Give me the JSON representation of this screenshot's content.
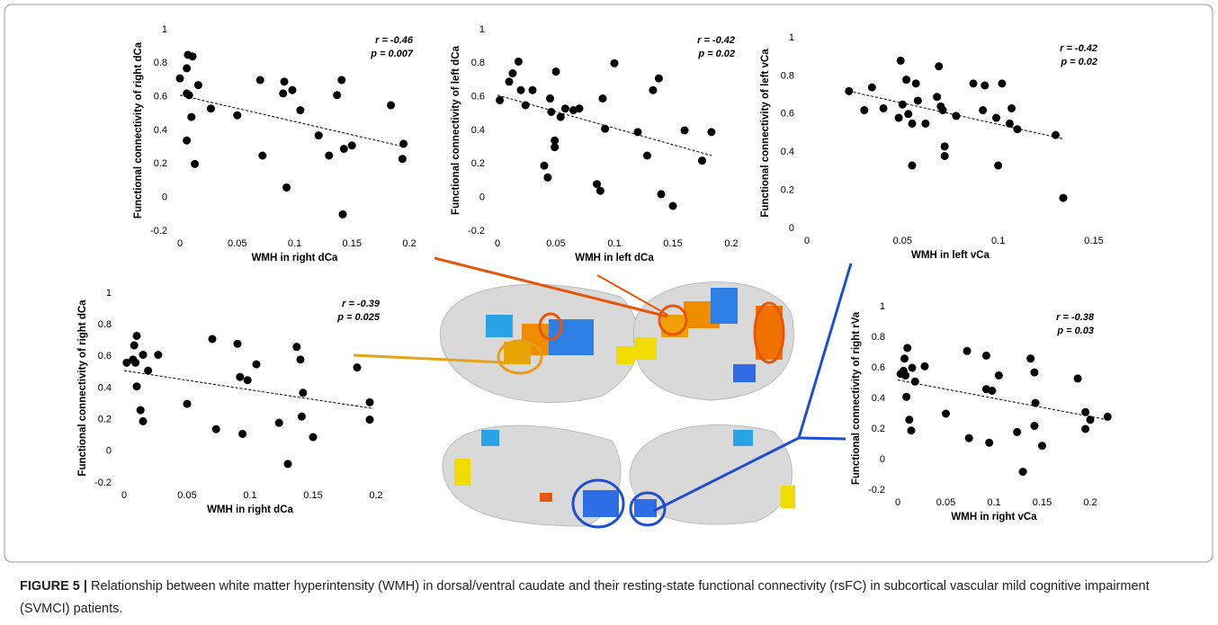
{
  "chart_data": [
    {
      "type": "scatter",
      "ylabel": "Functional connectivity of right dCa",
      "xlabel": "WMH in right dCa",
      "r_label": "r = -0.46",
      "p_label": "p = 0.007",
      "xlim": [
        0,
        0.2
      ],
      "ylim": [
        -0.2,
        1
      ],
      "xticks": [
        0,
        0.05,
        0.1,
        0.15,
        0.2
      ],
      "yticks": [
        -0.2,
        0,
        0.2,
        0.4,
        0.6,
        0.8,
        1
      ],
      "color": "#000000",
      "x": [
        0.0,
        0.006,
        0.007,
        0.011,
        0.006,
        0.008,
        0.006,
        0.01,
        0.013,
        0.016,
        0.027,
        0.05,
        0.07,
        0.072,
        0.09,
        0.091,
        0.098,
        0.093,
        0.105,
        0.121,
        0.13,
        0.137,
        0.141,
        0.143,
        0.15,
        0.142,
        0.184,
        0.195,
        0.194
      ],
      "y": [
        0.71,
        0.77,
        0.85,
        0.84,
        0.62,
        0.61,
        0.34,
        0.48,
        0.2,
        0.67,
        0.53,
        0.49,
        0.7,
        0.25,
        0.62,
        0.69,
        0.64,
        0.06,
        0.52,
        0.37,
        0.25,
        0.61,
        0.7,
        0.29,
        0.31,
        -0.1,
        0.55,
        0.32,
        0.23
      ],
      "trend": {
        "x": [
          0,
          0.197
        ],
        "y": [
          0.61,
          0.3
        ]
      }
    },
    {
      "type": "scatter",
      "ylabel": "Functional connectivity of left dCa",
      "xlabel": "WMH  in left dCa",
      "r_label": "r = -0.42",
      "p_label": "p = 0.02",
      "xlim": [
        0,
        0.2
      ],
      "ylim": [
        -0.2,
        1
      ],
      "xticks": [
        0,
        0.05,
        0.1,
        0.15,
        0.2
      ],
      "yticks": [
        -0.2,
        0,
        0.2,
        0.4,
        0.6,
        0.8,
        1
      ],
      "color": "#000000",
      "x": [
        0.002,
        0.01,
        0.013,
        0.018,
        0.02,
        0.024,
        0.03,
        0.04,
        0.045,
        0.043,
        0.046,
        0.05,
        0.049,
        0.049,
        0.054,
        0.058,
        0.065,
        0.07,
        0.085,
        0.088,
        0.09,
        0.092,
        0.1,
        0.12,
        0.128,
        0.133,
        0.138,
        0.14,
        0.15,
        0.16,
        0.175,
        0.183
      ],
      "y": [
        0.58,
        0.69,
        0.74,
        0.81,
        0.64,
        0.55,
        0.64,
        0.19,
        0.59,
        0.12,
        0.51,
        0.75,
        0.34,
        0.3,
        0.48,
        0.53,
        0.52,
        0.53,
        0.08,
        0.04,
        0.59,
        0.41,
        0.8,
        0.39,
        0.25,
        0.64,
        0.71,
        0.02,
        -0.05,
        0.4,
        0.22,
        0.39
      ],
      "trend": {
        "x": [
          0,
          0.183
        ],
        "y": [
          0.61,
          0.25
        ]
      }
    },
    {
      "type": "scatter",
      "ylabel": "Functional connectivity of left vCa",
      "xlabel": "WMH in left vCa",
      "r_label": "r = -0.42",
      "p_label": "p = 0.02",
      "xlim": [
        0,
        0.15
      ],
      "ylim": [
        0,
        1
      ],
      "xticks": [
        0,
        0.05,
        0.1,
        0.15
      ],
      "yticks": [
        0,
        0.2,
        0.4,
        0.6,
        0.8,
        1
      ],
      "color": "#000000",
      "x": [
        0.022,
        0.03,
        0.034,
        0.04,
        0.048,
        0.049,
        0.052,
        0.05,
        0.053,
        0.055,
        0.055,
        0.058,
        0.057,
        0.062,
        0.068,
        0.069,
        0.07,
        0.071,
        0.072,
        0.072,
        0.078,
        0.087,
        0.093,
        0.092,
        0.099,
        0.102,
        0.1,
        0.107,
        0.106,
        0.11,
        0.13,
        0.134
      ],
      "y": [
        0.72,
        0.62,
        0.74,
        0.63,
        0.58,
        0.88,
        0.78,
        0.65,
        0.6,
        0.33,
        0.55,
        0.67,
        0.76,
        0.55,
        0.69,
        0.85,
        0.64,
        0.62,
        0.43,
        0.38,
        0.59,
        0.76,
        0.75,
        0.62,
        0.58,
        0.76,
        0.33,
        0.63,
        0.55,
        0.52,
        0.49,
        0.16
      ],
      "trend": {
        "x": [
          0.022,
          0.134
        ],
        "y": [
          0.72,
          0.47
        ]
      }
    },
    {
      "type": "scatter",
      "ylabel": "Functional connectivity of right dCa",
      "xlabel": "WMH in right dCa",
      "r_label": "r = -0.39",
      "p_label": "p = 0.025",
      "xlim": [
        0,
        0.2
      ],
      "ylim": [
        -0.2,
        1
      ],
      "xticks": [
        0,
        0.05,
        0.1,
        0.15,
        0.2
      ],
      "yticks": [
        -0.2,
        0,
        0.2,
        0.4,
        0.6,
        0.8,
        1
      ],
      "color": "#000000",
      "x": [
        0.002,
        0.007,
        0.008,
        0.009,
        0.01,
        0.01,
        0.013,
        0.015,
        0.015,
        0.019,
        0.027,
        0.05,
        0.07,
        0.073,
        0.09,
        0.092,
        0.094,
        0.098,
        0.105,
        0.123,
        0.13,
        0.137,
        0.14,
        0.142,
        0.141,
        0.15,
        0.185,
        0.195,
        0.195
      ],
      "y": [
        0.56,
        0.58,
        0.67,
        0.56,
        0.41,
        0.73,
        0.26,
        0.61,
        0.19,
        0.51,
        0.61,
        0.3,
        0.71,
        0.14,
        0.68,
        0.47,
        0.11,
        0.45,
        0.55,
        0.18,
        -0.08,
        0.66,
        0.58,
        0.37,
        0.22,
        0.09,
        0.53,
        0.31,
        0.2
      ],
      "trend": {
        "x": [
          0,
          0.198
        ],
        "y": [
          0.51,
          0.27
        ]
      }
    },
    {
      "type": "scatter",
      "ylabel": "Functional connectivity of right rVa",
      "xlabel": "WMH in right vCa",
      "r_label": "r = -0.38",
      "p_label": "p = 0.03",
      "xlim": [
        0,
        0.2
      ],
      "ylim": [
        -0.2,
        1
      ],
      "xticks": [
        0,
        0.05,
        0.1,
        0.15,
        0.2
      ],
      "yticks": [
        -0.2,
        0,
        0.2,
        0.4,
        0.6,
        0.8,
        1
      ],
      "color": "#000000",
      "x": [
        0.003,
        0.006,
        0.007,
        0.008,
        0.009,
        0.01,
        0.012,
        0.015,
        0.014,
        0.018,
        0.028,
        0.05,
        0.072,
        0.074,
        0.092,
        0.092,
        0.095,
        0.098,
        0.105,
        0.124,
        0.13,
        0.138,
        0.142,
        0.143,
        0.142,
        0.15,
        0.187,
        0.195,
        0.195,
        0.2,
        0.218
      ],
      "y": [
        0.56,
        0.58,
        0.66,
        0.55,
        0.41,
        0.73,
        0.26,
        0.6,
        0.19,
        0.51,
        0.61,
        0.3,
        0.71,
        0.14,
        0.68,
        0.46,
        0.11,
        0.45,
        0.55,
        0.18,
        -0.08,
        0.66,
        0.57,
        0.37,
        0.22,
        0.09,
        0.53,
        0.31,
        0.2,
        0.26,
        0.28
      ],
      "trend": {
        "x": [
          0,
          0.218
        ],
        "y": [
          0.52,
          0.26
        ]
      }
    }
  ],
  "caption": {
    "label": "FIGURE 5 |",
    "text": "Relationship between white matter hyperintensity (WMH) in dorsal/ventral caudate and their resting-state functional connectivity (rsFC) in subcortical vascular mild cognitive impairment (SVMCI) patients."
  }
}
